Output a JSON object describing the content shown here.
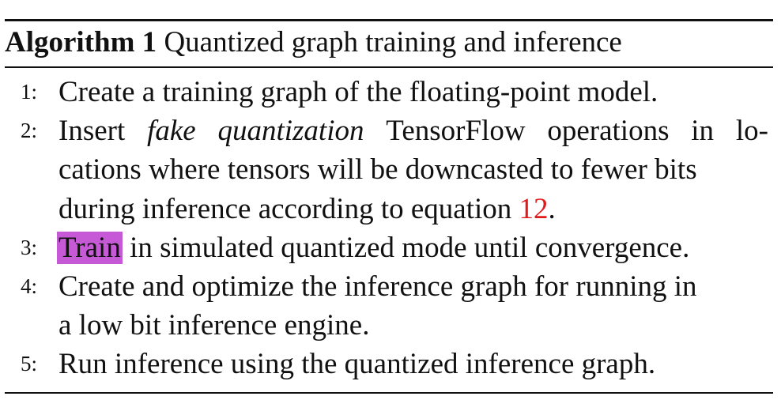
{
  "algorithm": {
    "label": "Algorithm 1",
    "title": "Quantized graph training and inference",
    "steps": [
      {
        "num": "1:",
        "text": "Create a training graph of the floating-point model."
      },
      {
        "num": "2:",
        "line1_words": [
          "Insert",
          "fake",
          "quantization",
          "TensorFlow",
          "operations",
          "in",
          "lo-"
        ],
        "line2": "cations where tensors will be downcasted to fewer bits",
        "line3_prefix": "during inference according to equation ",
        "line3_ref": "12",
        "line3_suffix": "."
      },
      {
        "num": "3:",
        "highlight": "Train",
        "rest": " in simulated quantized mode until convergence."
      },
      {
        "num": "4:",
        "line1": "Create and optimize the inference graph for running in",
        "line2": "a low bit inference engine."
      },
      {
        "num": "5:",
        "text": "Run inference using the quantized inference graph."
      }
    ]
  },
  "colors": {
    "reference_link": "#e01b1b",
    "highlight": "#c65ad6"
  }
}
